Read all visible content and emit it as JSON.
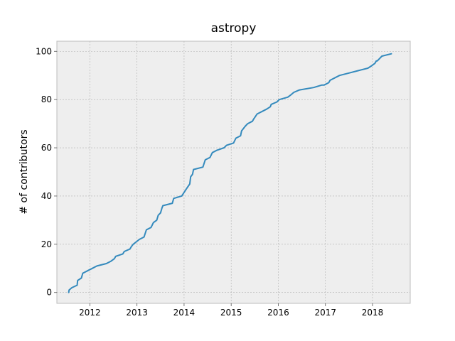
{
  "chart_data": {
    "type": "line",
    "title": "astropy",
    "xlabel": "",
    "ylabel": "# of contributors",
    "xlim": [
      2011.3,
      2018.8
    ],
    "ylim": [
      -4.5,
      104.2
    ],
    "xticks": [
      2012,
      2013,
      2014,
      2015,
      2016,
      2017,
      2018
    ],
    "yticks": [
      0,
      20,
      40,
      60,
      80,
      100
    ],
    "grid": true,
    "background": "#eeeeee",
    "grid_color": "#b0b0b0",
    "line_color": "#348abd",
    "series": [
      {
        "x": [
          2011.55,
          2011.56,
          2011.62,
          2011.73,
          2011.74,
          2011.82,
          2011.85,
          2011.95,
          2012.05,
          2012.15,
          2012.35,
          2012.45,
          2012.52,
          2012.55,
          2012.7,
          2012.73,
          2012.85,
          2012.88,
          2012.92,
          2013.05,
          2013.15,
          2013.2,
          2013.3,
          2013.35,
          2013.42,
          2013.45,
          2013.5,
          2013.53,
          2013.55,
          2013.75,
          2013.78,
          2013.95,
          2014.05,
          2014.12,
          2014.14,
          2014.18,
          2014.2,
          2014.4,
          2014.45,
          2014.55,
          2014.6,
          2014.7,
          2014.85,
          2014.9,
          2015.05,
          2015.1,
          2015.2,
          2015.22,
          2015.3,
          2015.35,
          2015.45,
          2015.48,
          2015.55,
          2015.75,
          2015.83,
          2015.85,
          2015.97,
          2016.02,
          2016.2,
          2016.27,
          2016.33,
          2016.45,
          2016.75,
          2016.92,
          2016.97,
          2017.07,
          2017.1,
          2017.3,
          2017.5,
          2017.7,
          2017.9,
          2017.98,
          2018.05,
          2018.08,
          2018.1,
          2018.15,
          2018.2,
          2018.4
        ],
        "y": [
          0,
          1,
          2,
          3,
          5,
          6,
          8,
          9,
          10,
          11,
          12,
          13,
          14,
          15,
          16,
          17,
          18,
          19,
          20,
          22,
          23,
          26,
          27,
          29,
          30,
          32,
          33,
          35,
          36,
          37,
          39,
          40,
          43,
          45,
          48,
          49,
          51,
          52,
          55,
          56,
          58,
          59,
          60,
          61,
          62,
          64,
          65,
          67,
          69,
          70,
          71,
          72,
          74,
          76,
          77,
          78,
          79,
          80,
          81,
          82,
          83,
          84,
          85,
          86,
          86,
          87,
          88,
          90,
          91,
          92,
          93,
          94,
          95,
          96,
          96,
          97,
          98,
          99
        ]
      }
    ]
  }
}
